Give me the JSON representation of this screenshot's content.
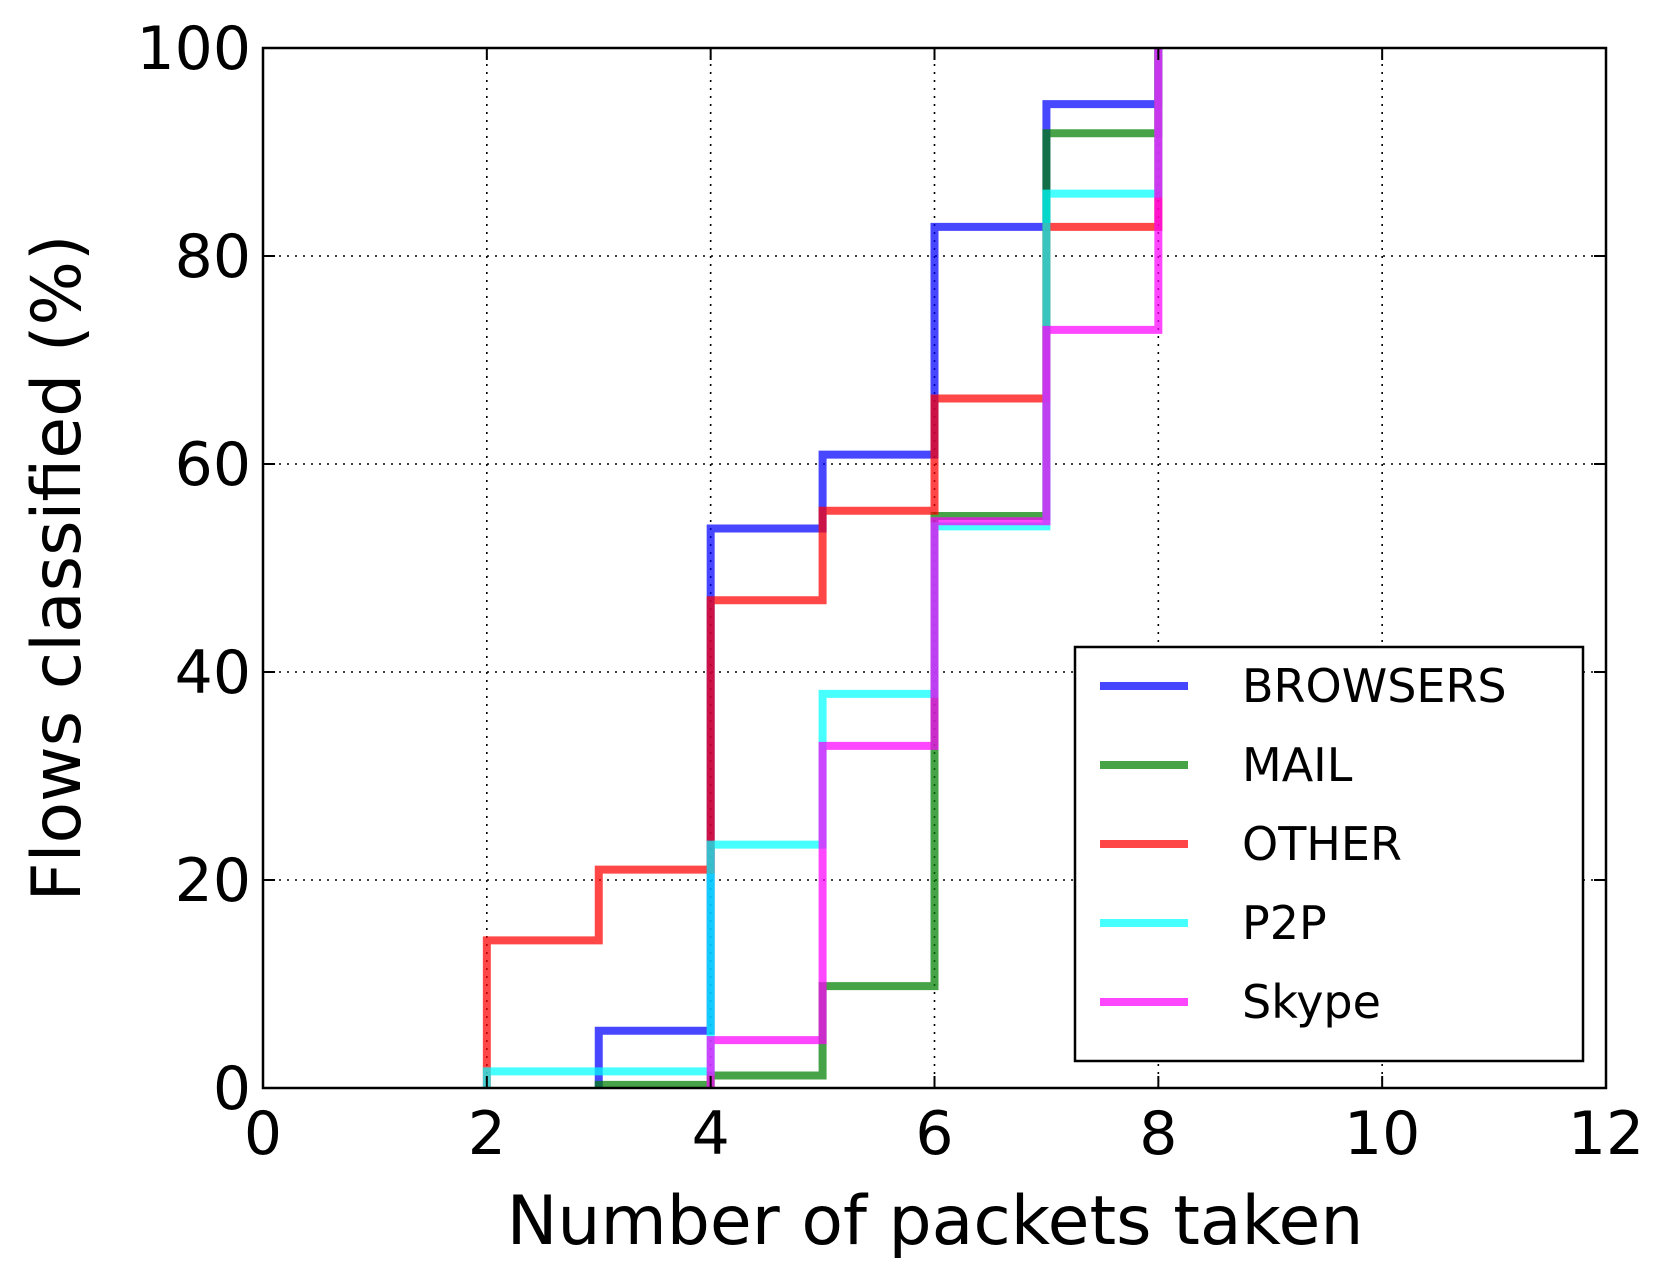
{
  "chart_data": {
    "type": "line",
    "step": "post",
    "title": "",
    "xlabel": "Number of packets taken",
    "ylabel": "Flows classified (%)",
    "xlim": [
      0,
      12
    ],
    "ylim": [
      0,
      100
    ],
    "xticks": [
      "0",
      "2",
      "4",
      "6",
      "8",
      "10",
      "12"
    ],
    "yticks": [
      "0",
      "20",
      "40",
      "60",
      "80",
      "100"
    ],
    "grid": true,
    "legend": "lower-right",
    "series": [
      {
        "name": "BROWSERS",
        "color": "#0000ff",
        "x": [
          3,
          4,
          5,
          6,
          7,
          8,
          8
        ],
        "y": [
          5.5,
          53.8,
          60.9,
          82.8,
          94.6,
          94.6,
          100
        ]
      },
      {
        "name": "MAIL",
        "color": "#008000",
        "x": [
          3,
          4,
          5,
          6,
          7,
          8,
          8
        ],
        "y": [
          0.3,
          1.2,
          9.8,
          55.0,
          91.8,
          91.8,
          100
        ]
      },
      {
        "name": "OTHER",
        "color": "#ff0000",
        "x": [
          2,
          3,
          4,
          5,
          6,
          7,
          8,
          8
        ],
        "y": [
          14.2,
          21.0,
          46.9,
          55.5,
          66.3,
          82.8,
          83.0,
          100
        ]
      },
      {
        "name": "P2P",
        "color": "#00ffff",
        "x": [
          2,
          4,
          5,
          6,
          7,
          8,
          8
        ],
        "y": [
          1.6,
          23.4,
          37.9,
          54.0,
          86.0,
          86.0,
          100
        ]
      },
      {
        "name": "Skype",
        "color": "#ff00ff",
        "x": [
          4,
          5,
          6,
          7,
          8,
          8
        ],
        "y": [
          4.6,
          32.9,
          54.5,
          72.9,
          73.6,
          100
        ]
      }
    ]
  }
}
